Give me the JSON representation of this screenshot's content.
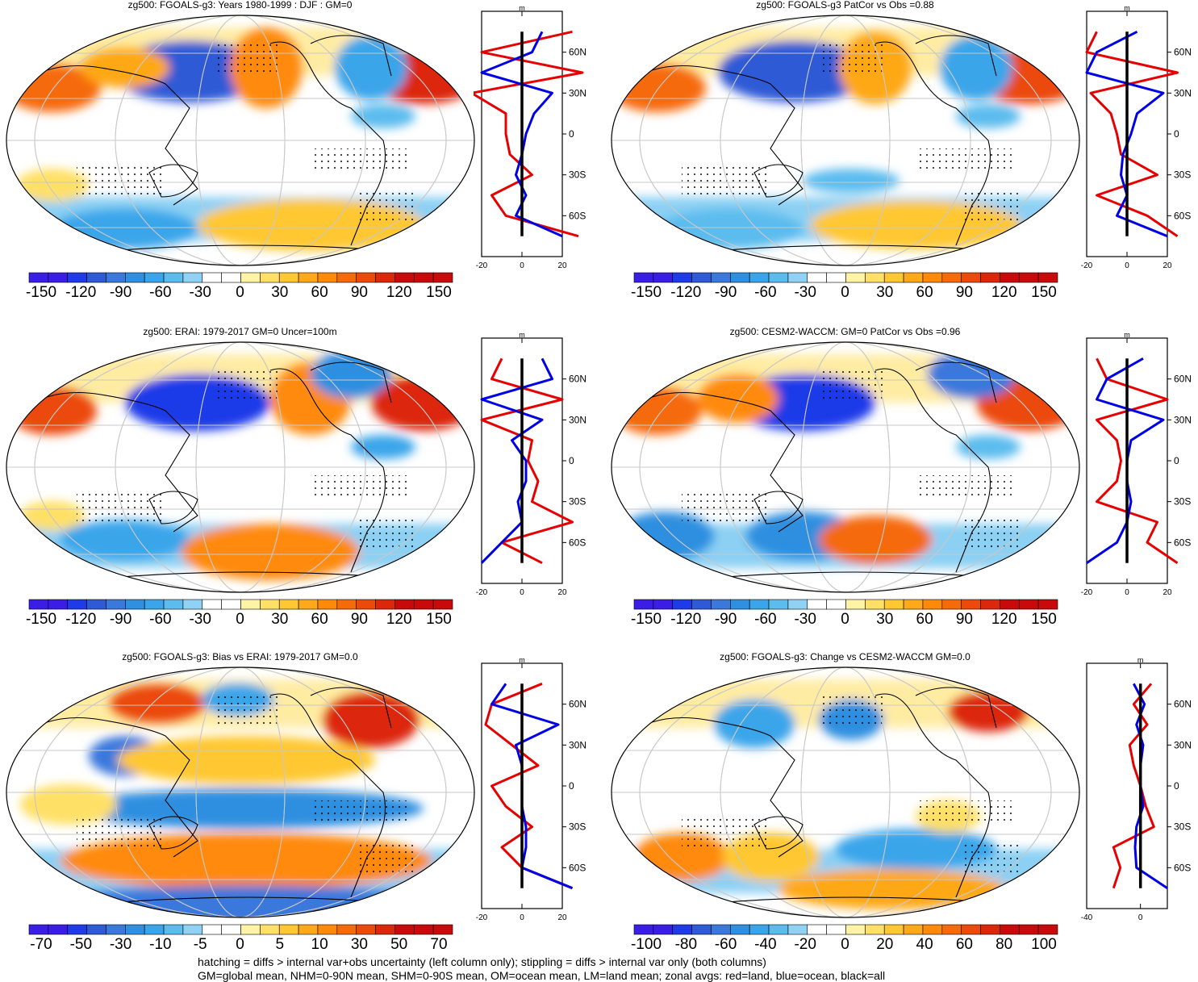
{
  "footer": {
    "line1": "hatching = diffs > internal var+obs uncertainty (left column only); stippling = diffs > internal var only (both columns)",
    "line2": "GM=global mean, NHM=0-90N mean, SHM=0-90S mean, OM=ocean mean, LM=land mean; zonal avgs: red=land, blue=ocean, black=all"
  },
  "colors": {
    "land_line": "#e60000",
    "ocean_line": "#0000e6",
    "all_line": "#000000",
    "palette": [
      "#3a1ee6",
      "#1f3be8",
      "#2e5ad6",
      "#3a78dc",
      "#2f8fe0",
      "#3aa5ea",
      "#5cbcee",
      "#8fd2f4",
      "#ffffff",
      "#ffffff",
      "#fff3a6",
      "#ffe066",
      "#ffc832",
      "#ffa819",
      "#ff8a0a",
      "#f56a0a",
      "#eb4a0a",
      "#dc280a",
      "#c80a0a"
    ]
  },
  "panels": [
    {
      "id": "p1",
      "title": "zg500: FGOALS-g3: Years 1980-1999 : DJF : GM=0",
      "ticks": [
        "-150",
        "-120",
        "-90",
        "-60",
        "-30",
        "0",
        "30",
        "60",
        "90",
        "120",
        "150"
      ],
      "zonal_xticks": [
        "-20",
        "0",
        "20"
      ],
      "unit": "m",
      "lat_labels": [
        "60N",
        "30N",
        "0",
        "30S",
        "60S"
      ]
    },
    {
      "id": "p2",
      "title": "zg500: FGOALS-g3 PatCor vs Obs =0.88",
      "ticks": [
        "-150",
        "-120",
        "-90",
        "-60",
        "-30",
        "0",
        "30",
        "60",
        "90",
        "120",
        "150"
      ],
      "zonal_xticks": [
        "-20",
        "0",
        "20"
      ],
      "unit": "m",
      "lat_labels": [
        "60N",
        "30N",
        "0",
        "30S",
        "60S"
      ]
    },
    {
      "id": "p3",
      "title": "zg500: ERAI: 1979-2017 GM=0 Uncer=100m",
      "ticks": [
        "-150",
        "-120",
        "-90",
        "-60",
        "-30",
        "0",
        "30",
        "60",
        "90",
        "120",
        "150"
      ],
      "zonal_xticks": [
        "-20",
        "0",
        "20"
      ],
      "unit": "m",
      "lat_labels": [
        "60N",
        "30N",
        "0",
        "30S",
        "60S"
      ]
    },
    {
      "id": "p4",
      "title": "zg500: CESM2-WACCM: GM=0 PatCor vs Obs =0.96",
      "ticks": [
        "-150",
        "-120",
        "-90",
        "-60",
        "-30",
        "0",
        "30",
        "60",
        "90",
        "120",
        "150"
      ],
      "zonal_xticks": [
        "-20",
        "0",
        "20"
      ],
      "unit": "m",
      "lat_labels": [
        "60N",
        "30N",
        "0",
        "30S",
        "60S"
      ]
    },
    {
      "id": "p5",
      "title": "zg500: FGOALS-g3: Bias vs ERAI: 1979-2017 GM=0.0",
      "ticks": [
        "-70",
        "-50",
        "-30",
        "-10",
        "-5",
        "0",
        "5",
        "10",
        "30",
        "50",
        "70"
      ],
      "zonal_xticks": [
        "-20",
        "0",
        "20"
      ],
      "unit": "m",
      "lat_labels": [
        "60N",
        "30N",
        "0",
        "30S",
        "60S"
      ]
    },
    {
      "id": "p6",
      "title": "zg500: FGOALS-g3: Change vs CESM2-WACCM GM=0.0",
      "ticks": [
        "-100",
        "-80",
        "-60",
        "-40",
        "-20",
        "0",
        "20",
        "40",
        "60",
        "80",
        "100"
      ],
      "zonal_xticks": [
        "-40",
        "0"
      ],
      "unit": "m",
      "lat_labels": [
        "60N",
        "30N",
        "0",
        "30S",
        "60S"
      ]
    }
  ],
  "chart_data": [
    {
      "type": "heatmap",
      "title": "zg500: FGOALS-g3: Years 1980-1999 : DJF : GM=0",
      "colorbar_ticks": [
        -150,
        -120,
        -90,
        -60,
        -30,
        0,
        30,
        60,
        90,
        120,
        150
      ],
      "zonal": {
        "xlim": [
          -20,
          20
        ],
        "lat": [
          75,
          60,
          45,
          30,
          15,
          0,
          -15,
          -30,
          -45,
          -60,
          -75
        ],
        "land": [
          25,
          -20,
          30,
          -25,
          -8,
          -8,
          -6,
          5,
          -15,
          -8,
          28
        ],
        "ocean": [
          10,
          5,
          -20,
          15,
          6,
          2,
          0,
          -3,
          2,
          -3,
          20
        ],
        "all": [
          0,
          0,
          0,
          0,
          0,
          0,
          0,
          0,
          0,
          0,
          0
        ]
      }
    },
    {
      "type": "heatmap",
      "title": "zg500: FGOALS-g3 PatCor vs Obs =0.88",
      "colorbar_ticks": [
        -150,
        -120,
        -90,
        -60,
        -30,
        0,
        30,
        60,
        90,
        120,
        150
      ],
      "zonal": {
        "xlim": [
          -20,
          20
        ],
        "lat": [
          75,
          60,
          45,
          30,
          15,
          0,
          -15,
          -30,
          -45,
          -60,
          -75
        ],
        "land": [
          -15,
          -20,
          25,
          -18,
          -8,
          -5,
          -3,
          15,
          -15,
          10,
          25
        ],
        "ocean": [
          5,
          -15,
          -20,
          18,
          5,
          2,
          -2,
          -3,
          0,
          -5,
          20
        ],
        "all": [
          0,
          0,
          0,
          0,
          0,
          0,
          0,
          0,
          0,
          0,
          0
        ]
      }
    },
    {
      "type": "heatmap",
      "title": "zg500: ERAI: 1979-2017 GM=0 Uncer=100m",
      "colorbar_ticks": [
        -150,
        -120,
        -90,
        -60,
        -30,
        0,
        30,
        60,
        90,
        120,
        150
      ],
      "zonal": {
        "xlim": [
          -20,
          20
        ],
        "lat": [
          75,
          60,
          45,
          30,
          15,
          0,
          -15,
          -30,
          -45,
          -60,
          -75
        ],
        "land": [
          -10,
          -15,
          20,
          -20,
          5,
          3,
          8,
          5,
          25,
          -10,
          10
        ],
        "ocean": [
          10,
          15,
          -20,
          10,
          -5,
          2,
          2,
          -2,
          0,
          -10,
          -20
        ],
        "all": [
          0,
          0,
          0,
          0,
          0,
          0,
          0,
          0,
          0,
          0,
          0
        ]
      }
    },
    {
      "type": "heatmap",
      "title": "zg500: CESM2-WACCM: GM=0 PatCor vs Obs =0.96",
      "colorbar_ticks": [
        -150,
        -120,
        -90,
        -60,
        -30,
        0,
        30,
        60,
        90,
        120,
        150
      ],
      "zonal": {
        "xlim": [
          -20,
          20
        ],
        "lat": [
          75,
          60,
          45,
          30,
          15,
          0,
          -15,
          -30,
          -45,
          -60,
          -75
        ],
        "land": [
          -15,
          -10,
          20,
          -15,
          -5,
          -3,
          -5,
          -15,
          15,
          10,
          25
        ],
        "ocean": [
          8,
          -10,
          -15,
          18,
          2,
          0,
          0,
          2,
          0,
          -5,
          -20
        ],
        "all": [
          0,
          0,
          0,
          0,
          0,
          0,
          0,
          0,
          0,
          0,
          0
        ]
      }
    },
    {
      "type": "heatmap",
      "title": "zg500: FGOALS-g3: Bias vs ERAI: 1979-2017 GM=0.0",
      "colorbar_ticks": [
        -70,
        -50,
        -30,
        -10,
        -5,
        0,
        5,
        10,
        30,
        50,
        70
      ],
      "zonal": {
        "xlim": [
          -20,
          20
        ],
        "lat": [
          75,
          60,
          45,
          30,
          15,
          0,
          -15,
          -30,
          -45,
          -60,
          -75
        ],
        "land": [
          10,
          -15,
          -18,
          -5,
          8,
          -15,
          -8,
          5,
          -10,
          0,
          25
        ],
        "ocean": [
          -8,
          -15,
          18,
          -3,
          0,
          0,
          0,
          2,
          2,
          0,
          25
        ],
        "all": [
          0,
          0,
          0,
          0,
          0,
          0,
          0,
          0,
          0,
          0,
          0
        ]
      }
    },
    {
      "type": "heatmap",
      "title": "zg500: FGOALS-g3: Change vs CESM2-WACCM GM=0.0",
      "colorbar_ticks": [
        -100,
        -80,
        -60,
        -40,
        -20,
        0,
        20,
        40,
        60,
        80,
        100
      ],
      "zonal": {
        "xlim": [
          -40,
          20
        ],
        "lat": [
          75,
          60,
          45,
          30,
          15,
          0,
          -15,
          -30,
          -45,
          -60,
          -75
        ],
        "land": [
          8,
          -5,
          5,
          -8,
          -5,
          0,
          4,
          10,
          -20,
          -15,
          -20
        ],
        "ocean": [
          -5,
          3,
          -3,
          2,
          0,
          0,
          2,
          -3,
          -4,
          -3,
          20
        ],
        "all": [
          0,
          0,
          0,
          0,
          0,
          0,
          0,
          0,
          0,
          0,
          0
        ]
      }
    }
  ]
}
